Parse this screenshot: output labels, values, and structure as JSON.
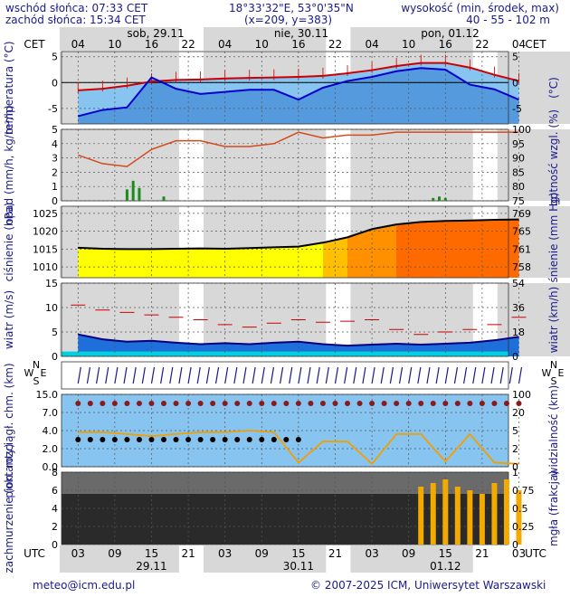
{
  "header": {
    "sunrise": "wschód słońca: 07:33 CET",
    "sunset": "zachód słońca: 15:34 CET",
    "coords": "18°33'32\"E, 53°0'35\"N",
    "grid": "(x=209,  y=383)",
    "height_label": "wysokość (min, środek, max)",
    "height_values": "40 - 55 - 102 m"
  },
  "time_axis": {
    "top_zone": "CET",
    "bottom_zone": "UTC",
    "top_days": [
      "sob, 29.11",
      "nie, 30.11",
      "pon, 01.12"
    ],
    "top_hours": [
      "04",
      "10",
      "16",
      "22",
      "04",
      "10",
      "16",
      "22",
      "04",
      "10",
      "16",
      "22",
      "04"
    ],
    "bottom_hours": [
      "03",
      "09",
      "15",
      "21",
      "03",
      "09",
      "15",
      "21",
      "03",
      "09",
      "15",
      "21",
      "03"
    ],
    "bottom_days": [
      "29.11",
      "30.11",
      "01.12"
    ]
  },
  "panels": {
    "temperature": {
      "left": "temperatura (°C)",
      "right": "(°C)",
      "ticks": [
        "5",
        "0",
        "-5"
      ]
    },
    "precip": {
      "left": "opad (mm/h, kg/m²/h)",
      "right": "wilgotność wzgl. (%)",
      "ticks_left": [
        "5",
        "4",
        "3",
        "2",
        "1",
        "0"
      ],
      "ticks_right": [
        "100",
        "95",
        "90",
        "85",
        "80",
        "75"
      ]
    },
    "pressure": {
      "left": "ciśnienie (hPa)",
      "right": "ciśnienie (mm Hg)",
      "ticks_left": [
        "1025",
        "1020",
        "1015",
        "1010"
      ],
      "ticks_right": [
        "769",
        "765",
        "761",
        "758"
      ]
    },
    "wind": {
      "left": "wiatr (m/s)",
      "right": "wiatr (km/h)",
      "ticks_left": [
        "15",
        "10",
        "5",
        "0"
      ],
      "ticks_right": [
        "54",
        "36",
        "18",
        "0"
      ]
    },
    "winddir": {
      "labels": [
        "N",
        "W",
        "E",
        "S"
      ]
    },
    "cloudbase": {
      "left": "pion. rozciągł. chm. (km)",
      "right": "widzialność (km)",
      "ticks_left": [
        "15.0",
        "7.0",
        "4.0",
        "2.0",
        "0.0"
      ],
      "ticks_right": [
        "100",
        "20",
        "5",
        "2",
        "0"
      ]
    },
    "cloudcover": {
      "left": "zachmurzenie (oktanty)",
      "right": "mgła (frakcja)",
      "ticks_left": [
        "8",
        "6",
        "4",
        "2",
        "0"
      ],
      "ticks_right": [
        "1",
        "0.75",
        "0.5",
        "0.25",
        "0"
      ]
    }
  },
  "colors": {
    "temp_line": "#cc0000",
    "dew_line": "#0000cc",
    "sky": "#88c4f0",
    "pressure_fill": "#ffff00",
    "wind_fill": "#1e6fd9",
    "fog_bars": "#f2a900",
    "night_shade": "#d8d8d8"
  },
  "chart_data": [
    {
      "type": "line",
      "name": "temperature",
      "x": [
        0,
        4,
        8,
        12,
        16,
        20,
        24,
        28,
        32,
        36,
        40,
        44,
        48,
        52,
        56,
        60,
        64,
        68,
        72
      ],
      "series": [
        {
          "values": [
            -1.5,
            -1.2,
            -0.6,
            0.2,
            0.5,
            0.6,
            0.8,
            0.9,
            1.0,
            1.1,
            1.3,
            1.8,
            2.4,
            3.2,
            3.8,
            3.8,
            2.9,
            1.5,
            0.3
          ]
        },
        {
          "values": [
            -6.5,
            -5.3,
            -4.8,
            1.0,
            -1.2,
            -2.2,
            -1.8,
            -1.4,
            -1.4,
            -3.3,
            -1.0,
            0.3,
            1.1,
            2.2,
            2.8,
            2.5,
            -0.4,
            -1.3,
            -3.3
          ]
        }
      ],
      "ylim": [
        -8,
        6
      ]
    },
    {
      "type": "bar",
      "name": "precipitation",
      "x": [
        8,
        9,
        10,
        14,
        58,
        59,
        60
      ],
      "values": [
        0.8,
        1.4,
        0.9,
        0.3,
        0.2,
        0.3,
        0.2
      ],
      "ylim": [
        0,
        5
      ]
    },
    {
      "type": "line",
      "name": "humidity",
      "x": [
        0,
        4,
        8,
        12,
        16,
        20,
        24,
        28,
        32,
        36,
        40,
        44,
        48,
        52,
        56,
        60,
        64,
        68,
        72
      ],
      "values": [
        91,
        88,
        87,
        93,
        96,
        96,
        94,
        94,
        95,
        99,
        97,
        98,
        98,
        99,
        99,
        99,
        99,
        99,
        99
      ],
      "ylim": [
        75,
        100
      ]
    },
    {
      "type": "area",
      "name": "pressure",
      "x": [
        0,
        4,
        8,
        12,
        16,
        20,
        24,
        28,
        32,
        36,
        40,
        44,
        48,
        52,
        56,
        60,
        64,
        68,
        72
      ],
      "values": [
        1015.4,
        1015.1,
        1015.0,
        1015.0,
        1015.1,
        1015.2,
        1015.1,
        1015.3,
        1015.5,
        1015.7,
        1016.8,
        1018.3,
        1020.6,
        1021.9,
        1022.6,
        1022.9,
        1023.0,
        1023.2,
        1023.3
      ],
      "ylim": [
        1007,
        1027
      ]
    },
    {
      "type": "line",
      "name": "wind_gust",
      "x": [
        0,
        4,
        8,
        12,
        16,
        20,
        24,
        28,
        32,
        36,
        40,
        44,
        48,
        52,
        56,
        60,
        64,
        68,
        72
      ],
      "values": [
        10.5,
        9.5,
        9.0,
        8.5,
        8.0,
        7.5,
        6.5,
        6.0,
        6.8,
        7.5,
        7.0,
        7.2,
        7.5,
        5.5,
        4.5,
        5.0,
        5.5,
        6.5,
        8.0
      ],
      "ylim": [
        0,
        15
      ]
    },
    {
      "type": "area",
      "name": "wind_speed",
      "x": [
        0,
        4,
        8,
        12,
        16,
        20,
        24,
        28,
        32,
        36,
        40,
        44,
        48,
        52,
        56,
        60,
        64,
        68,
        72
      ],
      "values": [
        4.5,
        3.5,
        3.0,
        3.2,
        2.8,
        2.5,
        2.7,
        2.5,
        2.8,
        3.0,
        2.5,
        2.2,
        2.4,
        2.6,
        2.4,
        2.6,
        2.8,
        3.3,
        4.0
      ],
      "ylim": [
        0,
        15
      ]
    },
    {
      "type": "line",
      "name": "visibility",
      "x": [
        0,
        4,
        8,
        12,
        16,
        20,
        24,
        28,
        32,
        36,
        40,
        44,
        48,
        52,
        56,
        60,
        64,
        68,
        72
      ],
      "values": [
        8,
        8,
        7,
        6,
        7,
        8,
        8,
        9,
        8,
        0.3,
        4,
        4,
        0.2,
        7,
        7,
        0.4,
        7,
        0.3,
        0.2
      ],
      "ylim": [
        0,
        100
      ]
    },
    {
      "type": "bar",
      "name": "fog_fraction",
      "x": [
        56,
        58,
        60,
        62,
        64,
        66,
        68,
        70,
        72
      ],
      "values": [
        0.8,
        0.85,
        0.9,
        0.8,
        0.75,
        0.7,
        0.85,
        0.9,
        0.75
      ],
      "ylim": [
        0,
        1
      ]
    }
  ],
  "footer": {
    "email": "meteo@icm.edu.pl",
    "copyright": "© 2007-2025 ICM, Uniwersytet Warszawski"
  }
}
